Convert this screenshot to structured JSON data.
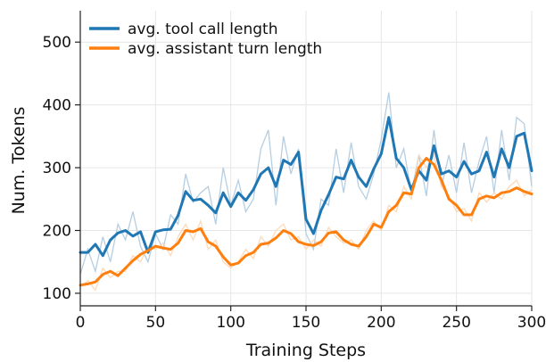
{
  "chart_data": {
    "type": "line",
    "title": "",
    "xlabel": "Training Steps",
    "ylabel": "Num. Tokens",
    "xlim": [
      0,
      300
    ],
    "ylim": [
      80,
      550
    ],
    "xticks": [
      0,
      50,
      100,
      150,
      200,
      250,
      300
    ],
    "yticks": [
      100,
      200,
      300,
      400,
      500
    ],
    "grid": true,
    "legend_position": "top-left",
    "series": [
      {
        "name": "avg. tool call length",
        "color": "#1f77b4",
        "raw_color": "#a9c6dc",
        "x": [
          0,
          5,
          10,
          15,
          20,
          25,
          30,
          35,
          40,
          45,
          50,
          55,
          60,
          65,
          70,
          75,
          80,
          85,
          90,
          95,
          100,
          105,
          110,
          115,
          120,
          125,
          130,
          135,
          140,
          145,
          150,
          155,
          160,
          165,
          170,
          175,
          180,
          185,
          190,
          195,
          200,
          205,
          210,
          215,
          220,
          225,
          230,
          235,
          240,
          245,
          250,
          255,
          260,
          265,
          270,
          275,
          280,
          285,
          290,
          295,
          300
        ],
        "smoothed": [
          165,
          165,
          178,
          160,
          185,
          196,
          200,
          191,
          198,
          165,
          198,
          201,
          202,
          224,
          262,
          248,
          250,
          240,
          228,
          260,
          238,
          260,
          248,
          265,
          290,
          300,
          270,
          312,
          305,
          325,
          218,
          195,
          232,
          257,
          285,
          282,
          312,
          285,
          270,
          298,
          322,
          380,
          315,
          300,
          265,
          295,
          280,
          335,
          290,
          295,
          285,
          310,
          290,
          295,
          325,
          285,
          330,
          300,
          350,
          355,
          295
        ],
        "raw": [
          130,
          170,
          135,
          190,
          150,
          210,
          185,
          230,
          175,
          150,
          195,
          170,
          225,
          210,
          290,
          245,
          260,
          270,
          210,
          300,
          240,
          280,
          230,
          250,
          330,
          360,
          240,
          350,
          290,
          330,
          195,
          170,
          250,
          240,
          330,
          260,
          340,
          270,
          250,
          290,
          345,
          420,
          300,
          330,
          260,
          320,
          255,
          360,
          270,
          320,
          260,
          340,
          260,
          310,
          350,
          260,
          360,
          280,
          380,
          370,
          270
        ]
      },
      {
        "name": "avg. assistant turn length",
        "color": "#ff7f0e",
        "raw_color": "#fbd3ae",
        "x": [
          0,
          5,
          10,
          15,
          20,
          25,
          30,
          35,
          40,
          45,
          50,
          55,
          60,
          65,
          70,
          75,
          80,
          85,
          90,
          95,
          100,
          105,
          110,
          115,
          120,
          125,
          130,
          135,
          140,
          145,
          150,
          155,
          160,
          165,
          170,
          175,
          180,
          185,
          190,
          195,
          200,
          205,
          210,
          215,
          220,
          225,
          230,
          235,
          240,
          245,
          250,
          255,
          260,
          265,
          270,
          275,
          280,
          285,
          290,
          295,
          300
        ],
        "smoothed": [
          113,
          115,
          118,
          130,
          135,
          128,
          140,
          152,
          162,
          168,
          175,
          172,
          170,
          180,
          200,
          198,
          203,
          182,
          175,
          158,
          145,
          148,
          160,
          165,
          178,
          180,
          188,
          200,
          195,
          182,
          178,
          176,
          182,
          196,
          198,
          185,
          178,
          175,
          190,
          210,
          205,
          230,
          240,
          260,
          258,
          300,
          315,
          305,
          280,
          250,
          240,
          225,
          225,
          250,
          255,
          252,
          260,
          262,
          268,
          262,
          258
        ],
        "raw": [
          110,
          120,
          105,
          140,
          125,
          135,
          135,
          160,
          150,
          175,
          170,
          180,
          160,
          190,
          210,
          185,
          215,
          170,
          185,
          150,
          140,
          150,
          170,
          155,
          190,
          175,
          200,
          210,
          185,
          190,
          170,
          185,
          175,
          205,
          190,
          180,
          185,
          170,
          200,
          215,
          200,
          240,
          230,
          270,
          250,
          320,
          300,
          320,
          270,
          255,
          230,
          235,
          215,
          260,
          245,
          260,
          250,
          270,
          280,
          255,
          265
        ]
      }
    ]
  }
}
